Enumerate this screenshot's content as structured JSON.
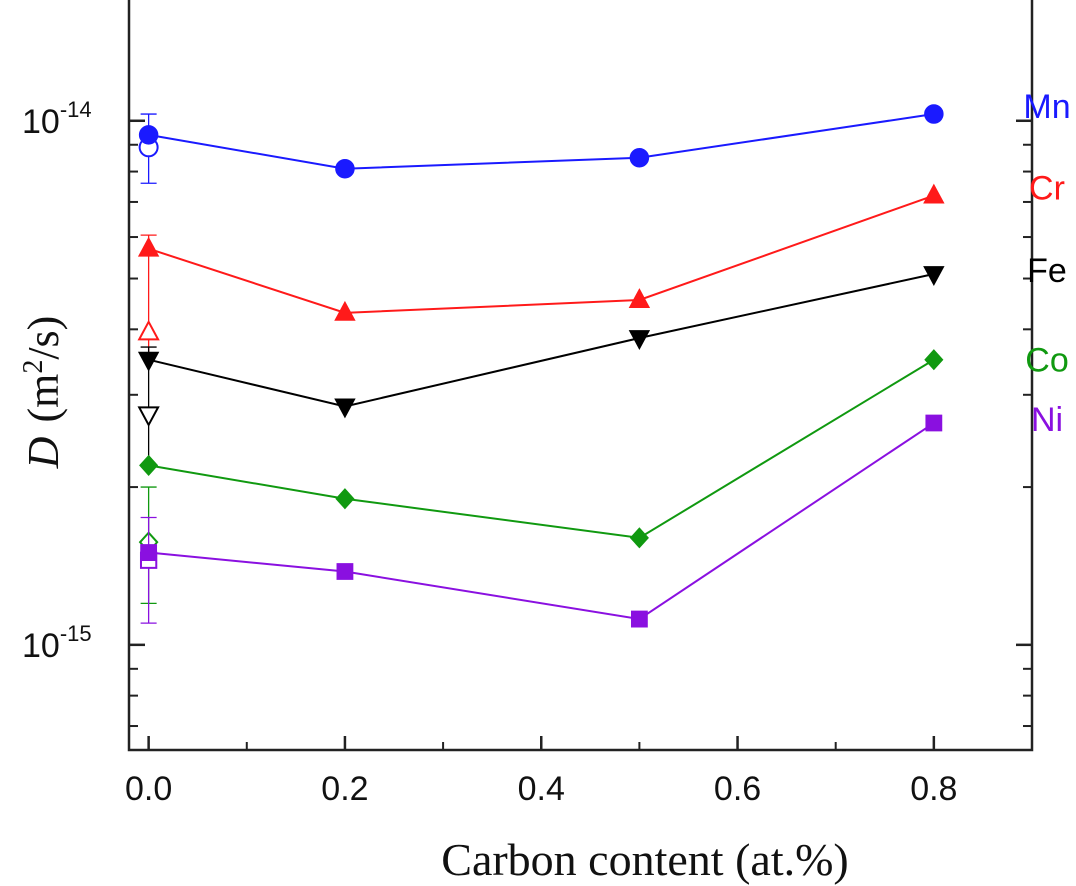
{
  "chart_data": {
    "type": "line",
    "xlabel": "Carbon content (at.%)",
    "ylabel_symbol": "D",
    "ylabel_unit_prefix": "(m",
    "ylabel_unit_exp": "2",
    "ylabel_unit_suffix": "/s)",
    "xlim": [
      -0.02,
      0.9
    ],
    "ylim": [
      6.3e-16,
      1.7e-14
    ],
    "yscale": "log",
    "x_ticks": [
      {
        "value": 0.0,
        "label": "0.0"
      },
      {
        "value": 0.2,
        "label": "0.2"
      },
      {
        "value": 0.4,
        "label": "0.4"
      },
      {
        "value": 0.6,
        "label": "0.6"
      },
      {
        "value": 0.8,
        "label": "0.8"
      }
    ],
    "x_minor_ticks": [
      0.1,
      0.3,
      0.5,
      0.7,
      0.9
    ],
    "y_major_ticks": [
      {
        "value": 1e-14,
        "base": "10",
        "exp": "-14"
      },
      {
        "value": 1e-15,
        "base": "10",
        "exp": "-15"
      }
    ],
    "y_minor_ticks": [
      7e-16,
      8e-16,
      9e-16,
      2e-15,
      3e-15,
      4e-15,
      5e-15,
      6e-15,
      7e-15,
      8e-15,
      9e-15
    ],
    "series": [
      {
        "name": "Mn",
        "color": "#1a1aff",
        "marker": "circle",
        "x": [
          0.0,
          0.2,
          0.5,
          0.8
        ],
        "y": [
          9.4e-15,
          8.1e-15,
          8.5e-15,
          1.03e-14
        ],
        "open_point": {
          "x": 0.0,
          "y": 8.9e-15
        },
        "error_bar": [
          7.6e-15,
          1.03e-14
        ]
      },
      {
        "name": "Cr",
        "color": "#ff1a1a",
        "marker": "triangle-up",
        "x": [
          0.0,
          0.2,
          0.5,
          0.8
        ],
        "y": [
          5.7e-15,
          4.3e-15,
          4.55e-15,
          7.2e-15
        ],
        "open_point": {
          "x": 0.0,
          "y": 3.95e-15
        },
        "error_bar": [
          3.6e-15,
          6.05e-15
        ]
      },
      {
        "name": "Fe",
        "color": "#000000",
        "marker": "triangle-down",
        "x": [
          0.0,
          0.2,
          0.5,
          0.8
        ],
        "y": [
          3.5e-15,
          2.85e-15,
          3.85e-15,
          5.1e-15
        ],
        "open_point": {
          "x": 0.0,
          "y": 2.75e-15
        },
        "error_bar": [
          2.2e-15,
          3.7e-15
        ]
      },
      {
        "name": "Co",
        "color": "#109910",
        "marker": "diamond",
        "x": [
          0.0,
          0.2,
          0.5,
          0.8
        ],
        "y": [
          2.2e-15,
          1.9e-15,
          1.6e-15,
          3.5e-15
        ],
        "open_point": {
          "x": 0.0,
          "y": 1.57e-15
        },
        "error_bar": [
          1.2e-15,
          2e-15
        ]
      },
      {
        "name": "Ni",
        "color": "#8a10e0",
        "marker": "square",
        "x": [
          0.0,
          0.2,
          0.5,
          0.8
        ],
        "y": [
          1.5e-15,
          1.38e-15,
          1.12e-15,
          2.65e-15
        ],
        "open_point": {
          "x": 0.0,
          "y": 1.45e-15
        },
        "error_bar": [
          1.1e-15,
          1.75e-15
        ]
      }
    ]
  }
}
